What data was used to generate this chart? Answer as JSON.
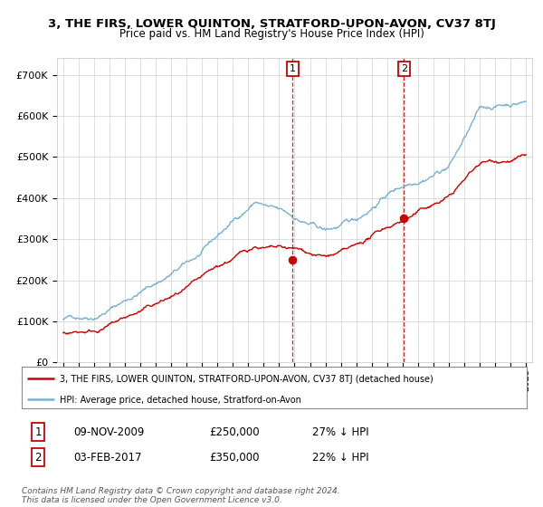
{
  "title": "3, THE FIRS, LOWER QUINTON, STRATFORD-UPON-AVON, CV37 8TJ",
  "subtitle": "Price paid vs. HM Land Registry's House Price Index (HPI)",
  "legend_line1": "3, THE FIRS, LOWER QUINTON, STRATFORD-UPON-AVON, CV37 8TJ (detached house)",
  "legend_line2": "HPI: Average price, detached house, Stratford-on-Avon",
  "annotation1_label": "1",
  "annotation1_date": "09-NOV-2009",
  "annotation1_price": "£250,000",
  "annotation1_pct": "27% ↓ HPI",
  "annotation2_label": "2",
  "annotation2_date": "03-FEB-2017",
  "annotation2_price": "£350,000",
  "annotation2_pct": "22% ↓ HPI",
  "footer": "Contains HM Land Registry data © Crown copyright and database right 2024.\nThis data is licensed under the Open Government Licence v3.0.",
  "hpi_color": "#7ab0d4",
  "price_color": "#cc0000",
  "annotation_color": "#cc0000",
  "yticks": [
    0,
    100000,
    200000,
    300000,
    400000,
    500000,
    600000,
    700000
  ],
  "ytick_labels": [
    "£0",
    "£100K",
    "£200K",
    "£300K",
    "£400K",
    "£500K",
    "£600K",
    "£700K"
  ],
  "ylim": [
    0,
    740000
  ],
  "year_start": 1995,
  "year_end": 2025,
  "sale1_year": 2009.87,
  "sale1_value": 250000,
  "sale2_year": 2017.09,
  "sale2_value": 350000
}
